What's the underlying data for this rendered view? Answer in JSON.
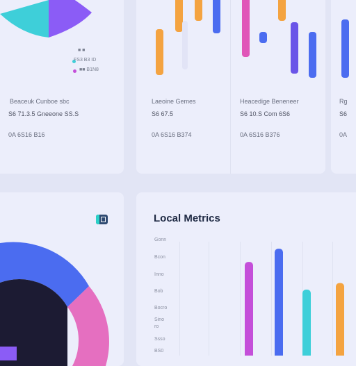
{
  "colors": {
    "background": "#e2e5f5",
    "card": "#eceefb",
    "title": "#1f2a44",
    "cyan": "#3ecfd9",
    "purple": "#8b5cf6",
    "blue": "#4b6cf0",
    "pink": "#e56fc0",
    "orange": "#f4a340",
    "magenta": "#c44fd9",
    "navy": "#1c1b33"
  },
  "top_left": {
    "legend": [
      "FS3 B3 ID",
      "■■ B1N8"
    ],
    "label": "Beaceuk Cunboe sbc",
    "value": "S6 71.3.5  Gneeone SS.S",
    "sub": "0A 6S16 B16"
  },
  "top_middle": {
    "label": "Laeoine Gemes",
    "value": "S6 67.5",
    "sub": "0A 6S16 B374"
  },
  "top_right": {
    "label": "Heacedige Beneneer",
    "value": "S6 10.S  Com 6S6",
    "sub": "0A 6S16 B376"
  },
  "top_edge": {
    "label": "Rg",
    "value": "S6",
    "sub": "0A"
  },
  "bottom_left": {
    "badge_icon": "calendar-icon"
  },
  "bottom_right": {
    "title": "Local Metrics",
    "y_labels": [
      "Gonn",
      "Bcon",
      "Inno",
      "Bob",
      "Bocro",
      "Sino",
      "ro",
      "Ssso",
      "BS0"
    ]
  },
  "chart_data": {
    "type": "bar",
    "title": "Local Metrics",
    "categories": [
      "",
      "",
      "",
      ""
    ],
    "series": [
      {
        "values": [
          0.71,
          0.81,
          0.5,
          0.55
        ]
      }
    ],
    "bar_colors": [
      "#c44fd9",
      "#4b6cf0",
      "#3ecfd9",
      "#f4a340"
    ]
  }
}
